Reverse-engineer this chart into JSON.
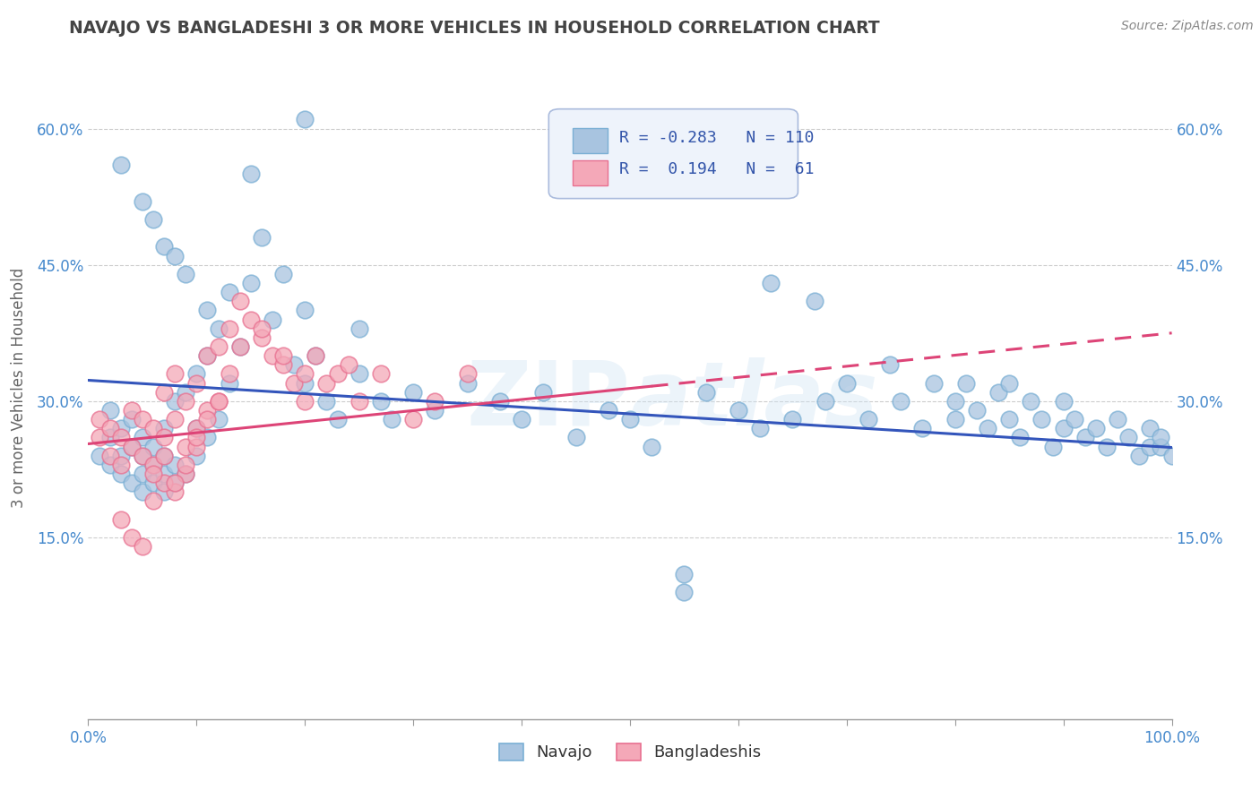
{
  "title": "NAVAJO VS BANGLADESHI 3 OR MORE VEHICLES IN HOUSEHOLD CORRELATION CHART",
  "source": "Source: ZipAtlas.com",
  "ylabel": "3 or more Vehicles in Household",
  "xlim": [
    0.0,
    1.0
  ],
  "ylim": [
    -0.05,
    0.68
  ],
  "xticks": [
    0.0,
    0.1,
    0.2,
    0.3,
    0.4,
    0.5,
    0.6,
    0.7,
    0.8,
    0.9,
    1.0
  ],
  "xticklabels": [
    "0.0%",
    "",
    "",
    "",
    "",
    "",
    "",
    "",
    "",
    "",
    "100.0%"
  ],
  "yticks": [
    0.15,
    0.3,
    0.45,
    0.6
  ],
  "yticklabels": [
    "15.0%",
    "30.0%",
    "45.0%",
    "60.0%"
  ],
  "navajo_color": "#a8c4e0",
  "bangladeshi_color": "#f4a8b8",
  "navajo_edge": "#7aafd4",
  "bangladeshi_edge": "#e87090",
  "navajo_R": -0.283,
  "navajo_N": 110,
  "bangladeshi_R": 0.194,
  "bangladeshi_N": 61,
  "background_color": "#ffffff",
  "grid_color": "#cccccc",
  "watermark_text": "ZIPatlas",
  "tick_color": "#4488cc",
  "axis_label_color": "#666666",
  "title_color": "#444444",
  "source_color": "#888888",
  "navajo_trend_color": "#3355bb",
  "bangladeshi_trend_color": "#dd4477",
  "navajo_x": [
    0.01,
    0.02,
    0.02,
    0.02,
    0.03,
    0.03,
    0.03,
    0.04,
    0.04,
    0.04,
    0.05,
    0.05,
    0.05,
    0.05,
    0.06,
    0.06,
    0.06,
    0.07,
    0.07,
    0.07,
    0.07,
    0.08,
    0.08,
    0.08,
    0.09,
    0.09,
    0.1,
    0.1,
    0.1,
    0.11,
    0.11,
    0.12,
    0.12,
    0.13,
    0.13,
    0.14,
    0.15,
    0.16,
    0.17,
    0.18,
    0.19,
    0.2,
    0.2,
    0.21,
    0.22,
    0.23,
    0.25,
    0.25,
    0.27,
    0.28,
    0.3,
    0.32,
    0.35,
    0.38,
    0.4,
    0.42,
    0.45,
    0.48,
    0.5,
    0.52,
    0.55,
    0.57,
    0.6,
    0.62,
    0.63,
    0.65,
    0.67,
    0.68,
    0.7,
    0.72,
    0.74,
    0.75,
    0.77,
    0.78,
    0.8,
    0.8,
    0.81,
    0.82,
    0.83,
    0.84,
    0.85,
    0.85,
    0.86,
    0.87,
    0.88,
    0.89,
    0.9,
    0.9,
    0.91,
    0.92,
    0.93,
    0.94,
    0.95,
    0.96,
    0.97,
    0.98,
    0.98,
    0.99,
    0.99,
    1.0,
    0.03,
    0.05,
    0.06,
    0.07,
    0.08,
    0.09,
    0.11,
    0.15,
    0.2,
    0.55
  ],
  "navajo_y": [
    0.24,
    0.23,
    0.26,
    0.29,
    0.22,
    0.24,
    0.27,
    0.21,
    0.25,
    0.28,
    0.2,
    0.22,
    0.24,
    0.26,
    0.21,
    0.23,
    0.25,
    0.2,
    0.22,
    0.24,
    0.27,
    0.21,
    0.23,
    0.3,
    0.22,
    0.31,
    0.24,
    0.27,
    0.33,
    0.26,
    0.35,
    0.28,
    0.38,
    0.32,
    0.42,
    0.36,
    0.43,
    0.48,
    0.39,
    0.44,
    0.34,
    0.32,
    0.4,
    0.35,
    0.3,
    0.28,
    0.33,
    0.38,
    0.3,
    0.28,
    0.31,
    0.29,
    0.32,
    0.3,
    0.28,
    0.31,
    0.26,
    0.29,
    0.28,
    0.25,
    0.11,
    0.31,
    0.29,
    0.27,
    0.43,
    0.28,
    0.41,
    0.3,
    0.32,
    0.28,
    0.34,
    0.3,
    0.27,
    0.32,
    0.3,
    0.28,
    0.32,
    0.29,
    0.27,
    0.31,
    0.28,
    0.32,
    0.26,
    0.3,
    0.28,
    0.25,
    0.27,
    0.3,
    0.28,
    0.26,
    0.27,
    0.25,
    0.28,
    0.26,
    0.24,
    0.25,
    0.27,
    0.25,
    0.26,
    0.24,
    0.56,
    0.52,
    0.5,
    0.47,
    0.46,
    0.44,
    0.4,
    0.55,
    0.61,
    0.09
  ],
  "bangladeshi_x": [
    0.01,
    0.01,
    0.02,
    0.02,
    0.03,
    0.03,
    0.04,
    0.04,
    0.05,
    0.05,
    0.06,
    0.06,
    0.07,
    0.07,
    0.08,
    0.08,
    0.09,
    0.09,
    0.1,
    0.1,
    0.11,
    0.11,
    0.12,
    0.12,
    0.13,
    0.14,
    0.15,
    0.16,
    0.17,
    0.18,
    0.19,
    0.2,
    0.2,
    0.21,
    0.22,
    0.23,
    0.24,
    0.25,
    0.27,
    0.3,
    0.32,
    0.35,
    0.14,
    0.16,
    0.18,
    0.08,
    0.09,
    0.1,
    0.06,
    0.07,
    0.03,
    0.04,
    0.05,
    0.06,
    0.07,
    0.08,
    0.09,
    0.1,
    0.11,
    0.12,
    0.13
  ],
  "bangladeshi_y": [
    0.28,
    0.26,
    0.27,
    0.24,
    0.26,
    0.23,
    0.29,
    0.25,
    0.28,
    0.24,
    0.27,
    0.23,
    0.31,
    0.26,
    0.33,
    0.28,
    0.3,
    0.25,
    0.32,
    0.27,
    0.35,
    0.29,
    0.36,
    0.3,
    0.38,
    0.41,
    0.39,
    0.37,
    0.35,
    0.34,
    0.32,
    0.33,
    0.3,
    0.35,
    0.32,
    0.33,
    0.34,
    0.3,
    0.33,
    0.28,
    0.3,
    0.33,
    0.36,
    0.38,
    0.35,
    0.2,
    0.22,
    0.25,
    0.19,
    0.21,
    0.17,
    0.15,
    0.14,
    0.22,
    0.24,
    0.21,
    0.23,
    0.26,
    0.28,
    0.3,
    0.33
  ],
  "navajo_trend_start_y": 0.323,
  "navajo_trend_end_y": 0.249,
  "bangladeshi_trend_solid_x0": 0.0,
  "bangladeshi_trend_solid_x1": 0.52,
  "bangladeshi_trend_dashed_x0": 0.52,
  "bangladeshi_trend_dashed_x1": 1.0,
  "bangladeshi_trend_start_y": 0.253,
  "bangladeshi_trend_end_y": 0.375
}
